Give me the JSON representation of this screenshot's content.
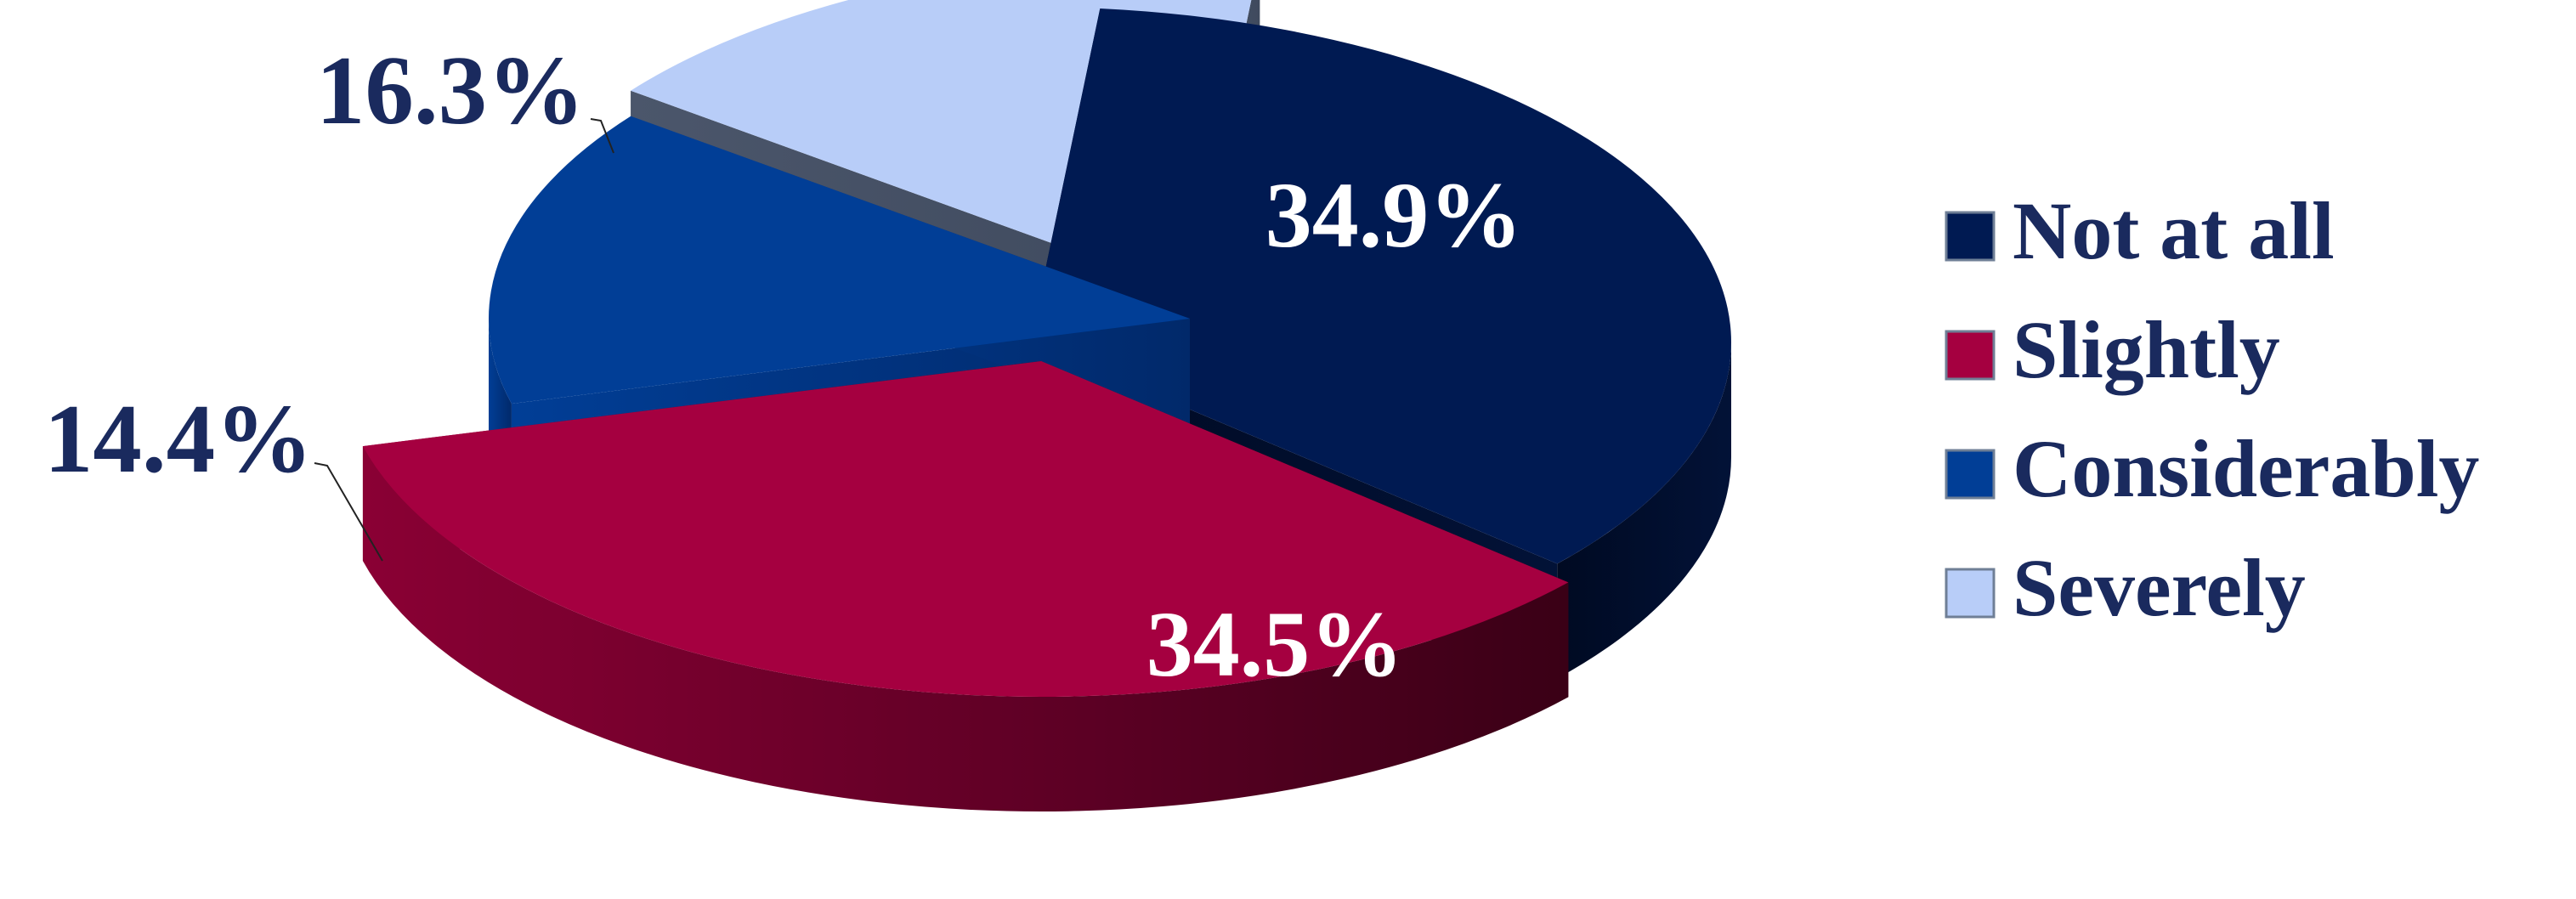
{
  "chart_data": {
    "type": "pie",
    "style": "3d-exploded",
    "categories": [
      "Not at all",
      "Slightly",
      "Considerably",
      "Severely"
    ],
    "values": [
      34.9,
      34.5,
      14.4,
      16.3
    ],
    "data_labels": [
      "34.9%",
      "34.5%",
      "14.4%",
      "16.3%"
    ],
    "unit": "%",
    "legend": {
      "placement": "right",
      "entries": [
        "Not at all",
        "Slightly",
        "Considerably",
        "Severely"
      ]
    },
    "colors": [
      "#001a52",
      "#a50040",
      "#013e96",
      "#b8cdf8"
    ],
    "label_color_outside": "#1a2a5e",
    "label_color_inside": "#ffffff"
  }
}
